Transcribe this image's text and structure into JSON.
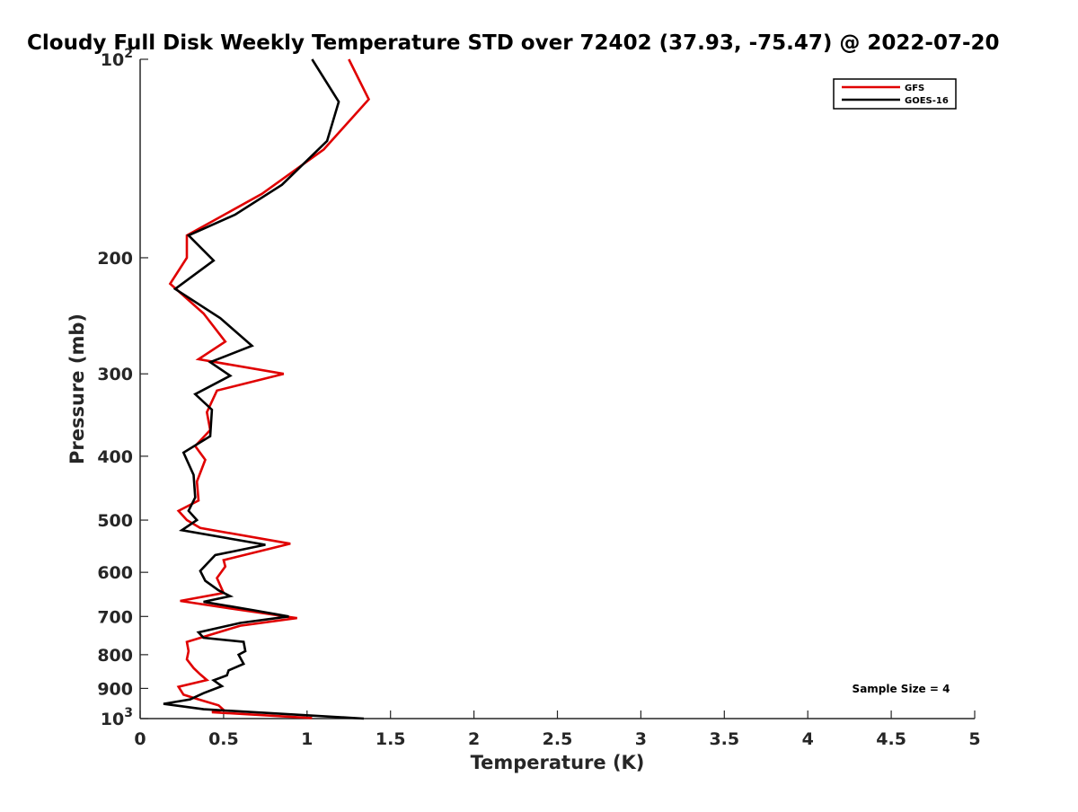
{
  "chart_data": {
    "type": "line",
    "title": "Cloudy Full Disk Weekly Temperature STD over 72402 (37.93, -75.47) @ 2022-07-20",
    "xlabel": "Temperature (K)",
    "ylabel": "Pressure (mb)",
    "xlim": [
      0,
      5
    ],
    "ylim": [
      100,
      1000
    ],
    "y_scale": "log",
    "y_reversed": true,
    "grid": false,
    "legend_position": "top-right",
    "x_ticks": [
      0,
      0.5,
      1,
      1.5,
      2,
      2.5,
      3,
      3.5,
      4,
      4.5,
      5
    ],
    "x_tick_labels": [
      "0",
      "0.5",
      "1",
      "1.5",
      "2",
      "2.5",
      "3",
      "3.5",
      "4",
      "4.5",
      "5"
    ],
    "y_ticks": [
      {
        "value": 100,
        "base": "10",
        "exp": "2"
      },
      {
        "value": 200,
        "label": "200"
      },
      {
        "value": 300,
        "label": "300"
      },
      {
        "value": 400,
        "label": "400"
      },
      {
        "value": 500,
        "label": "500"
      },
      {
        "value": 600,
        "label": "600"
      },
      {
        "value": 700,
        "label": "700"
      },
      {
        "value": 800,
        "label": "800"
      },
      {
        "value": 900,
        "label": "900"
      },
      {
        "value": 1000,
        "base": "10",
        "exp": "3"
      }
    ],
    "series": [
      {
        "name": "GFS",
        "color": "#e00000",
        "points": [
          [
            1.25,
            100
          ],
          [
            1.37,
            115
          ],
          [
            1.1,
            137
          ],
          [
            0.73,
            160
          ],
          [
            0.28,
            185
          ],
          [
            0.28,
            200
          ],
          [
            0.18,
            219
          ],
          [
            0.38,
            243
          ],
          [
            0.51,
            268
          ],
          [
            0.35,
            285
          ],
          [
            0.86,
            300
          ],
          [
            0.46,
            318
          ],
          [
            0.4,
            343
          ],
          [
            0.42,
            365
          ],
          [
            0.33,
            386
          ],
          [
            0.39,
            405
          ],
          [
            0.34,
            437
          ],
          [
            0.35,
            467
          ],
          [
            0.23,
            484
          ],
          [
            0.28,
            500
          ],
          [
            0.36,
            514
          ],
          [
            0.9,
            543
          ],
          [
            0.5,
            575
          ],
          [
            0.51,
            588
          ],
          [
            0.46,
            612
          ],
          [
            0.5,
            645
          ],
          [
            0.24,
            663
          ],
          [
            0.58,
            683
          ],
          [
            0.94,
            704
          ],
          [
            0.6,
            723
          ],
          [
            0.28,
            765
          ],
          [
            0.29,
            790
          ],
          [
            0.28,
            813
          ],
          [
            0.32,
            838
          ],
          [
            0.36,
            857
          ],
          [
            0.4,
            874
          ],
          [
            0.23,
            895
          ],
          [
            0.26,
            920
          ],
          [
            0.35,
            935
          ],
          [
            0.47,
            955
          ],
          [
            0.5,
            970
          ],
          [
            0.43,
            978
          ],
          [
            1.03,
            998
          ]
        ]
      },
      {
        "name": "GOES-16",
        "color": "#000000",
        "points": [
          [
            1.03,
            100
          ],
          [
            1.19,
            116
          ],
          [
            1.12,
            133
          ],
          [
            0.85,
            155
          ],
          [
            0.57,
            172
          ],
          [
            0.29,
            185
          ],
          [
            0.44,
            202
          ],
          [
            0.21,
            223
          ],
          [
            0.48,
            247
          ],
          [
            0.67,
            272
          ],
          [
            0.42,
            288
          ],
          [
            0.54,
            302
          ],
          [
            0.33,
            322
          ],
          [
            0.43,
            340
          ],
          [
            0.42,
            373
          ],
          [
            0.26,
            395
          ],
          [
            0.32,
            427
          ],
          [
            0.33,
            462
          ],
          [
            0.29,
            484
          ],
          [
            0.34,
            500
          ],
          [
            0.25,
            518
          ],
          [
            0.75,
            545
          ],
          [
            0.45,
            565
          ],
          [
            0.36,
            597
          ],
          [
            0.39,
            618
          ],
          [
            0.47,
            639
          ],
          [
            0.54,
            652
          ],
          [
            0.38,
            665
          ],
          [
            0.68,
            685
          ],
          [
            0.89,
            700
          ],
          [
            0.6,
            716
          ],
          [
            0.35,
            740
          ],
          [
            0.38,
            754
          ],
          [
            0.62,
            765
          ],
          [
            0.63,
            790
          ],
          [
            0.59,
            800
          ],
          [
            0.62,
            826
          ],
          [
            0.53,
            845
          ],
          [
            0.52,
            860
          ],
          [
            0.44,
            875
          ],
          [
            0.49,
            893
          ],
          [
            0.38,
            915
          ],
          [
            0.3,
            935
          ],
          [
            0.14,
            950
          ],
          [
            0.38,
            968
          ],
          [
            1.34,
            1000
          ]
        ]
      }
    ],
    "annotation": "Sample Size = 4"
  }
}
